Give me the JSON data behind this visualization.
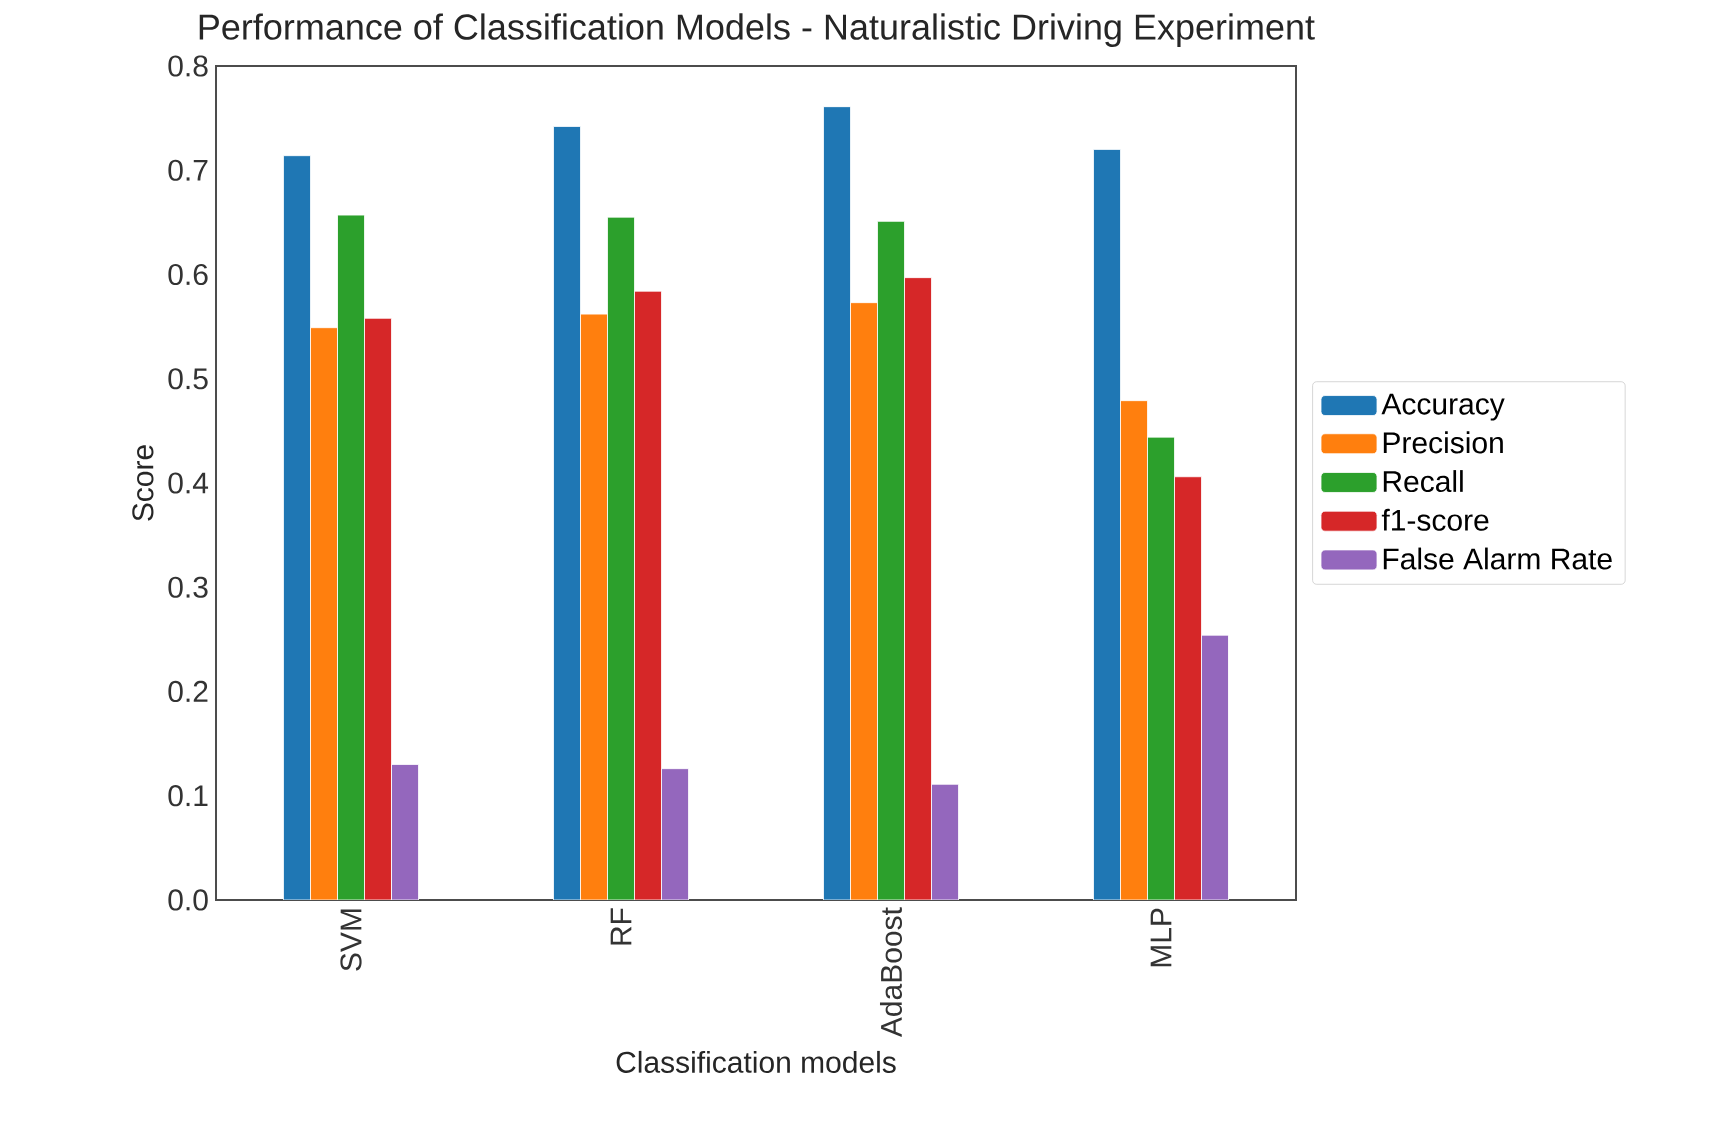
{
  "chart_data": {
    "type": "bar",
    "title": "Performance of Classification Models - Naturalistic Driving Experiment",
    "xlabel": "Classification models",
    "ylabel": "Score",
    "categories": [
      "SVM",
      "RF",
      "AdaBoost",
      "MLP"
    ],
    "series": [
      {
        "name": "Accuracy",
        "color": "#1f77b4",
        "values": [
          0.714,
          0.742,
          0.761,
          0.72
        ]
      },
      {
        "name": "Precision",
        "color": "#ff7f0e",
        "values": [
          0.549,
          0.562,
          0.573,
          0.479
        ]
      },
      {
        "name": "Recall",
        "color": "#2ca02c",
        "values": [
          0.657,
          0.655,
          0.651,
          0.444
        ]
      },
      {
        "name": "f1-score",
        "color": "#d62728",
        "values": [
          0.558,
          0.584,
          0.597,
          0.406
        ]
      },
      {
        "name": "False Alarm Rate",
        "color": "#9467bd",
        "values": [
          0.13,
          0.126,
          0.111,
          0.254
        ]
      }
    ],
    "ylim": [
      0,
      0.8
    ],
    "yticks": [
      {
        "value": 0,
        "label": "0.0"
      },
      0.1,
      0.2,
      0.3,
      0.4,
      0.5,
      0.6,
      0.7,
      0.8
    ],
    "legend": "right"
  }
}
